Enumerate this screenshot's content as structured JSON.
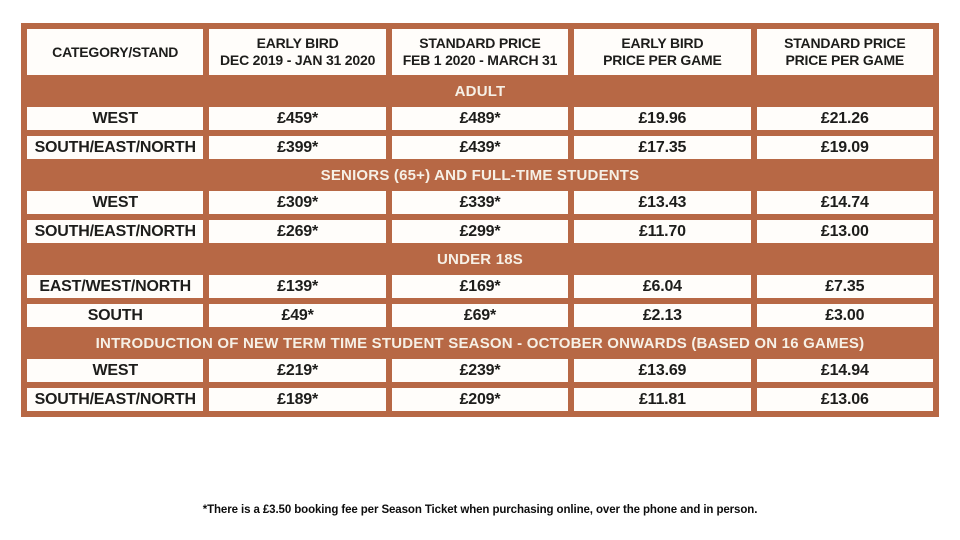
{
  "colors": {
    "terracotta": "#b76845",
    "band_text": "#f6f0e6",
    "cell_background": "#fffdfa",
    "text": "#1d1d1b"
  },
  "table": {
    "headers": [
      {
        "line1": "CATEGORY/STAND",
        "line2": ""
      },
      {
        "line1": "EARLY BIRD",
        "line2": "DEC 2019 - JAN 31 2020"
      },
      {
        "line1": "STANDARD PRICE",
        "line2": "FEB 1 2020 - MARCH 31"
      },
      {
        "line1": "EARLY BIRD",
        "line2": "PRICE PER GAME"
      },
      {
        "line1": "STANDARD PRICE",
        "line2": "PRICE PER GAME"
      }
    ],
    "sections": [
      {
        "title": "ADULT",
        "rows": [
          [
            "WEST",
            "£459*",
            "£489*",
            "£19.96",
            "£21.26"
          ],
          [
            "SOUTH/EAST/NORTH",
            "£399*",
            "£439*",
            "£17.35",
            "£19.09"
          ]
        ]
      },
      {
        "title": "SENIORS (65+) AND FULL-TIME STUDENTS",
        "rows": [
          [
            "WEST",
            "£309*",
            "£339*",
            "£13.43",
            "£14.74"
          ],
          [
            "SOUTH/EAST/NORTH",
            "£269*",
            "£299*",
            "£11.70",
            "£13.00"
          ]
        ]
      },
      {
        "title": "UNDER 18S",
        "rows": [
          [
            "EAST/WEST/NORTH",
            "£139*",
            "£169*",
            "£6.04",
            "£7.35"
          ],
          [
            "SOUTH",
            "£49*",
            "£69*",
            "£2.13",
            "£3.00"
          ]
        ]
      },
      {
        "title": "INTRODUCTION OF NEW TERM TIME STUDENT SEASON - OCTOBER ONWARDS (BASED ON 16 GAMES)",
        "rows": [
          [
            "WEST",
            "£219*",
            "£239*",
            "£13.69",
            "£14.94"
          ],
          [
            "SOUTH/EAST/NORTH",
            "£189*",
            "£209*",
            "£11.81",
            "£13.06"
          ]
        ]
      }
    ],
    "footnote": "*There is a £3.50 booking fee per Season Ticket when purchasing online, over the phone and in person."
  }
}
